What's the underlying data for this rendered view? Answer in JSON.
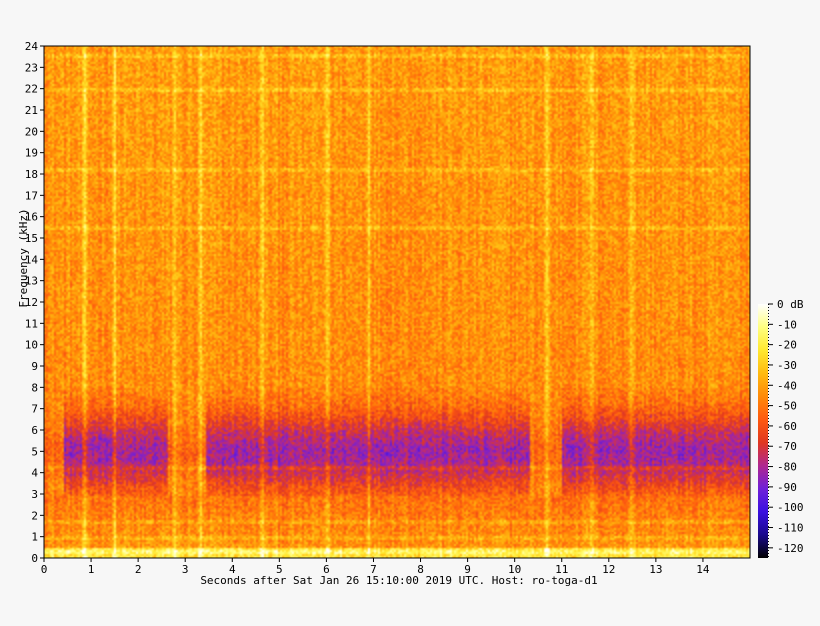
{
  "chart_data": {
    "type": "heatmap",
    "title": "",
    "xlabel": "Seconds after Sat Jan 26 15:10:00 2019 UTC. Host: ro-toga-d1",
    "ylabel": "Frequency (kHz)",
    "x_ticks": [
      "0",
      "1",
      "2",
      "3",
      "4",
      "5",
      "6",
      "7",
      "8",
      "9",
      "10",
      "11",
      "12",
      "13",
      "14"
    ],
    "y_ticks": [
      "0",
      "1",
      "2",
      "3",
      "4",
      "5",
      "6",
      "7",
      "8",
      "9",
      "10",
      "11",
      "12",
      "13",
      "14",
      "15",
      "16",
      "17",
      "18",
      "19",
      "20",
      "21",
      "22",
      "23",
      "24"
    ],
    "xlim": [
      0,
      15
    ],
    "ylim": [
      0,
      24
    ],
    "colorbar": {
      "ticks": [
        "0 dB",
        "-10",
        "-20",
        "-30",
        "-40",
        "-50",
        "-60",
        "-70",
        "-80",
        "-90",
        "-100",
        "-110",
        "-120"
      ],
      "range_db": [
        -125,
        0
      ],
      "colors": [
        "#000000",
        "#1a0a8c",
        "#3a10e0",
        "#7020d8",
        "#b02890",
        "#e03820",
        "#ff5a10",
        "#ff8a08",
        "#ffba10",
        "#ffe830",
        "#ffff80",
        "#ffffff"
      ]
    },
    "persistent_bands_khz": [
      0.3,
      1.0,
      1.7,
      4.3,
      15.5,
      18.2,
      22.0,
      23.6
    ],
    "transient_times_s": [
      0.85,
      1.5,
      2.75,
      3.3,
      4.65,
      6.0,
      6.9,
      10.65,
      11.6,
      12.45
    ]
  }
}
